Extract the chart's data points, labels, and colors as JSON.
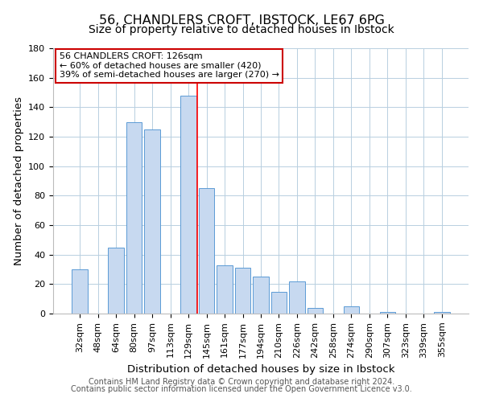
{
  "title": "56, CHANDLERS CROFT, IBSTOCK, LE67 6PG",
  "subtitle": "Size of property relative to detached houses in Ibstock",
  "xlabel": "Distribution of detached houses by size in Ibstock",
  "ylabel": "Number of detached properties",
  "bar_labels": [
    "32sqm",
    "48sqm",
    "64sqm",
    "80sqm",
    "97sqm",
    "113sqm",
    "129sqm",
    "145sqm",
    "161sqm",
    "177sqm",
    "194sqm",
    "210sqm",
    "226sqm",
    "242sqm",
    "258sqm",
    "274sqm",
    "290sqm",
    "307sqm",
    "323sqm",
    "339sqm",
    "355sqm"
  ],
  "bar_heights": [
    30,
    0,
    45,
    130,
    125,
    0,
    148,
    85,
    33,
    31,
    25,
    15,
    22,
    4,
    0,
    5,
    0,
    1,
    0,
    0,
    1
  ],
  "bar_color": "#c7d9f0",
  "bar_edge_color": "#5b9bd5",
  "reference_line_x": 6.5,
  "annotation_line1": "56 CHANDLERS CROFT: 126sqm",
  "annotation_line2": "← 60% of detached houses are smaller (420)",
  "annotation_line3": "39% of semi-detached houses are larger (270) →",
  "ylim": [
    0,
    180
  ],
  "yticks": [
    0,
    20,
    40,
    60,
    80,
    100,
    120,
    140,
    160,
    180
  ],
  "footer_line1": "Contains HM Land Registry data © Crown copyright and database right 2024.",
  "footer_line2": "Contains public sector information licensed under the Open Government Licence v3.0.",
  "title_fontsize": 11.5,
  "subtitle_fontsize": 10,
  "axis_label_fontsize": 9.5,
  "tick_fontsize": 8,
  "footer_fontsize": 7
}
